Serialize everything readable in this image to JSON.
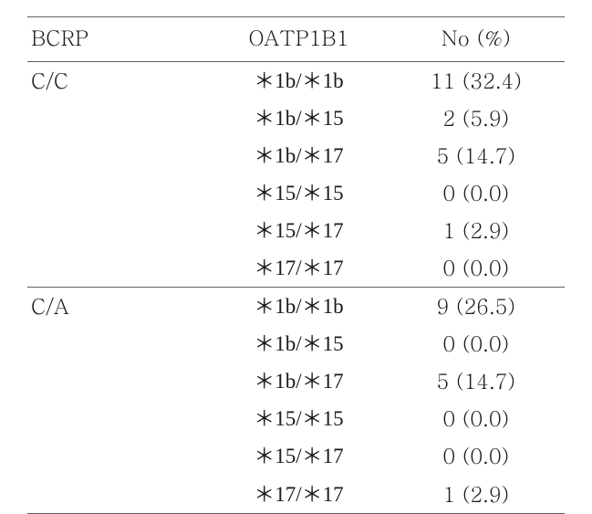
{
  "table": {
    "columns": [
      "BCRP",
      "OATP1B1",
      "No (%)"
    ],
    "groups": [
      {
        "bcrp": "C/C",
        "rows": [
          {
            "oatp": "＊1b/＊1b",
            "no": "11 (32.4)"
          },
          {
            "oatp": "＊1b/＊15",
            "no": "2 (5.9)"
          },
          {
            "oatp": "＊1b/＊17",
            "no": "5 (14.7)"
          },
          {
            "oatp": "＊15/＊15",
            "no": "0 (0.0)"
          },
          {
            "oatp": "＊15/＊17",
            "no": "1 (2.9)"
          },
          {
            "oatp": "＊17/＊17",
            "no": "0 (0.0)"
          }
        ]
      },
      {
        "bcrp": "C/A",
        "rows": [
          {
            "oatp": "＊1b/＊1b",
            "no": "9 (26.5)"
          },
          {
            "oatp": "＊1b/＊15",
            "no": "0 (0.0)"
          },
          {
            "oatp": "＊1b/＊17",
            "no": "5 (14.7)"
          },
          {
            "oatp": "＊15/＊15",
            "no": "0 (0.0)"
          },
          {
            "oatp": "＊15/＊17",
            "no": "0 (0.0)"
          },
          {
            "oatp": "＊17/＊17",
            "no": "1 (2.9)"
          }
        ]
      }
    ],
    "style": {
      "font_size_pt": 17,
      "border_color": "#606060",
      "text_color": "#1a1a1a",
      "background_color": "#ffffff",
      "col_align": [
        "left",
        "center",
        "center"
      ]
    }
  }
}
